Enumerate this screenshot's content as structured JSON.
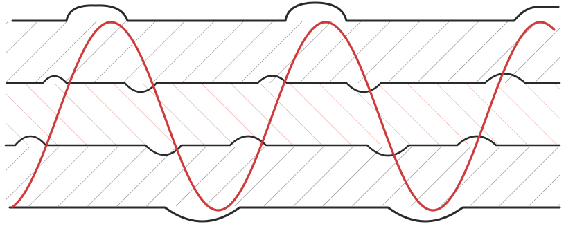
{
  "diagram": {
    "kind": "layered-hatched-bands-with-sinusoid",
    "text_labels": [],
    "colors": {
      "background": "#ffffff",
      "boundary_line": "#2a2a2a",
      "hatch_dark": "#7a7a7a",
      "hatch_red": "#e59a9a",
      "wave": "#cf3a3a"
    },
    "bands": [
      {
        "id": "upper-band",
        "hatch": "dark"
      },
      {
        "id": "middle-band",
        "hatch": "red"
      },
      {
        "id": "lower-band",
        "hatch": "dark"
      }
    ],
    "boundaries": [
      {
        "id": "top-boundary"
      },
      {
        "id": "upper-middle-boundary"
      },
      {
        "id": "lower-middle-boundary"
      },
      {
        "id": "bottom-boundary"
      }
    ],
    "wave": {
      "shape": "sine",
      "cycles_visible": 2.5
    }
  }
}
